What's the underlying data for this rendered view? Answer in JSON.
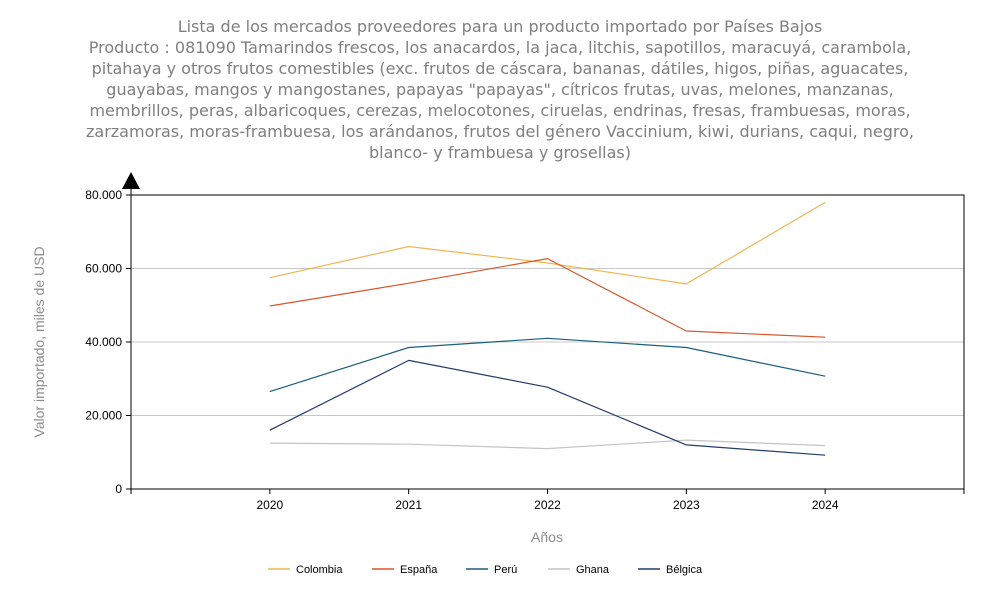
{
  "chart_data": {
    "type": "line",
    "title": "Lista de los mercados proveedores para un producto importado por Países Bajos",
    "subtitle_lines": [
      "Producto : 081090 Tamarindos frescos, los anacardos, la jaca, litchis, sapotillos, maracuyá, carambola,",
      "pitahaya y otros frutos comestibles (exc. frutos de cáscara, bananas, dátiles, higos, piñas, aguacates,",
      "guayabas, mangos y mangostanes, papayas \"papayas\", cítricos frutas, uvas, melones, manzanas,",
      "membrillos, peras, albaricoques, cerezas, melocotones, ciruelas, endrinas, fresas, frambuesas, moras,",
      "zarzamoras, moras-frambuesa, los arándanos, frutos del género Vaccinium, kiwi, durians, caqui, negro,",
      "blanco- y frambuesa y grosellas)"
    ],
    "xlabel": "Años",
    "ylabel": "Valor importado, miles de USD",
    "x": [
      "2020",
      "2021",
      "2022",
      "2023",
      "2024"
    ],
    "xlim": [
      2019,
      2025
    ],
    "ylim": [
      0,
      80000
    ],
    "yticks": [
      {
        "value": 0,
        "label": "0"
      },
      {
        "value": 20000,
        "label": "20.000"
      },
      {
        "value": 40000,
        "label": "40.000"
      },
      {
        "value": 60000,
        "label": "60.000"
      },
      {
        "value": 80000,
        "label": "80.000"
      }
    ],
    "grid": true,
    "legend_position": "bottom",
    "series": [
      {
        "name": "Colombia",
        "color": "#f0b550",
        "values": [
          57500,
          66000,
          61500,
          55800,
          78000
        ]
      },
      {
        "name": "España",
        "color": "#d9552b",
        "values": [
          49800,
          56000,
          62700,
          43000,
          41300
        ]
      },
      {
        "name": "Perú",
        "color": "#1a5e7d",
        "values": [
          26500,
          38500,
          41000,
          38500,
          30700
        ]
      },
      {
        "name": "Ghana",
        "color": "#c4c4c4",
        "values": [
          12500,
          12200,
          11000,
          13300,
          11800
        ]
      },
      {
        "name": "Bélgica",
        "color": "#233e69",
        "values": [
          16000,
          35000,
          27700,
          12000,
          9200
        ]
      }
    ]
  }
}
